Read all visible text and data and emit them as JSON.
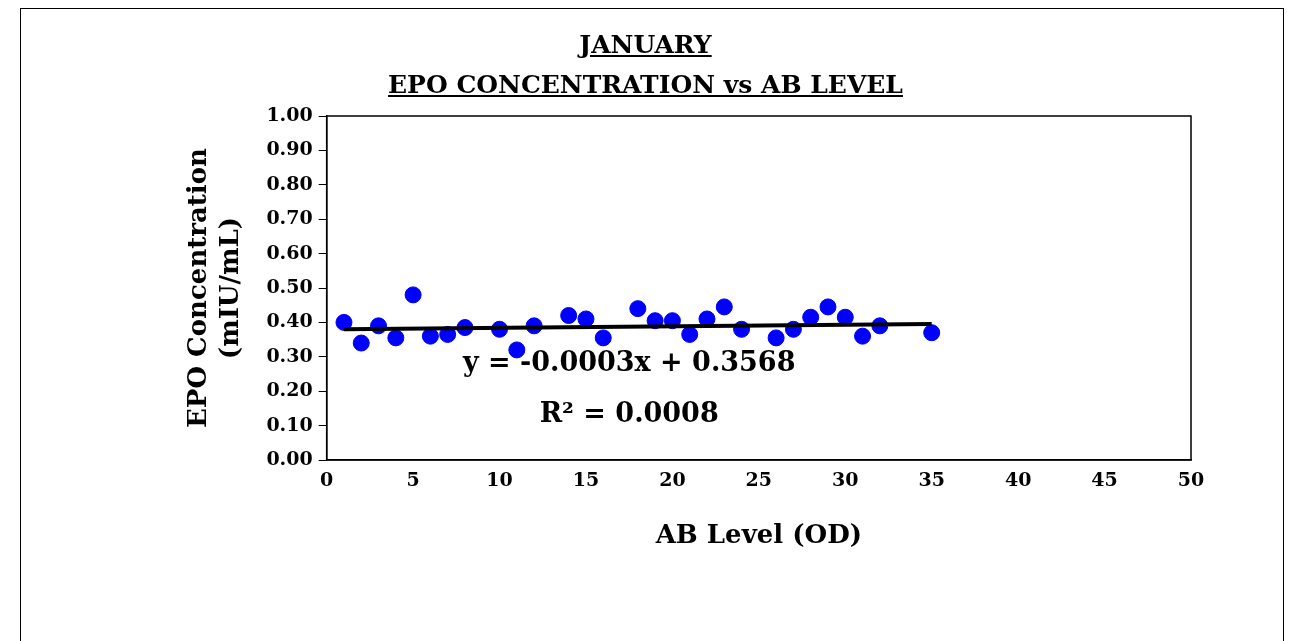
{
  "chart_data": {
    "type": "scatter",
    "title": "JANUARY",
    "subtitle": "EPO CONCENTRATION vs AB LEVEL",
    "xlabel": "AB Level (OD)",
    "ylabel": "EPO Concentration (mIU/mL)",
    "xlim": [
      0,
      50
    ],
    "xticks": [
      0,
      5,
      10,
      15,
      20,
      25,
      30,
      35,
      40,
      45,
      50
    ],
    "ylim": [
      0,
      1
    ],
    "yticks": [
      {
        "value": 0,
        "label": "0.00"
      },
      {
        "value": 0.1,
        "label": "0.10"
      },
      {
        "value": 0.2,
        "label": "0.20"
      },
      {
        "value": 0.3,
        "label": "0.30"
      },
      {
        "value": 0.4,
        "label": "0.40"
      },
      {
        "value": 0.5,
        "label": "0.50"
      },
      {
        "value": 0.6,
        "label": "0.60"
      },
      {
        "value": 0.7,
        "label": "0.70"
      },
      {
        "value": 0.8,
        "label": "0.80"
      },
      {
        "value": 0.9,
        "label": "0.90"
      },
      {
        "value": 1,
        "label": "1.00"
      }
    ],
    "legend": false,
    "marker": "circle",
    "series": [
      {
        "color": "#0000ff",
        "x": [
          1,
          2,
          3,
          4,
          5,
          6,
          7,
          8,
          10,
          11,
          12,
          14,
          15,
          16,
          18,
          19,
          20,
          21,
          22,
          23,
          24,
          26,
          27,
          28,
          29,
          30,
          31,
          32,
          35
        ],
        "values": [
          0.4,
          0.34,
          0.39,
          0.355,
          0.48,
          0.36,
          0.365,
          0.385,
          0.38,
          0.32,
          0.39,
          0.42,
          0.41,
          0.355,
          0.44,
          0.405,
          0.405,
          0.365,
          0.41,
          0.445,
          0.38,
          0.355,
          0.38,
          0.415,
          0.445,
          0.415,
          0.36,
          0.39,
          0.37
        ]
      },
      {
        "type": "line",
        "color": "#000000",
        "marker": "none",
        "x": [
          1,
          35
        ],
        "values": [
          0.38,
          0.395
        ]
      }
    ],
    "annotations": [
      "y = -0.0003x + 0.3568",
      "R² = 0.0008"
    ]
  }
}
